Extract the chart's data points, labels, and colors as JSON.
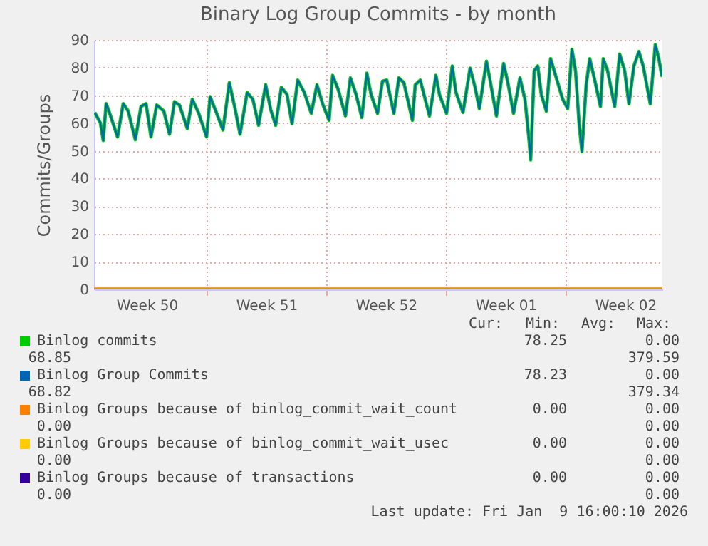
{
  "chart_data": {
    "type": "line",
    "title": "Binary Log Group Commits - by month",
    "ylabel": "Commits/Groups",
    "x": [
      "2025-12-08T11:00",
      "2025-12-08T19:00",
      "2025-12-08T23:00",
      "2025-12-09T03:00",
      "2025-12-09T07:00",
      "2025-12-09T19:00",
      "2025-12-10T03:00",
      "2025-12-10T10:00",
      "2025-12-10T20:00",
      "2025-12-11T04:00",
      "2025-12-11T11:00",
      "2025-12-11T18:00",
      "2025-12-12T02:00",
      "2025-12-12T12:00",
      "2025-12-12T20:00",
      "2025-12-13T03:00",
      "2025-12-13T10:00",
      "2025-12-13T21:00",
      "2025-12-14T04:00",
      "2025-12-14T13:00",
      "2025-12-15T00:00",
      "2025-12-15T05:00",
      "2025-12-15T13:00",
      "2025-12-15T23:00",
      "2025-12-16T08:00",
      "2025-12-16T16:00",
      "2025-12-16T23:00",
      "2025-12-17T09:00",
      "2025-12-17T17:00",
      "2025-12-18T01:00",
      "2025-12-18T11:00",
      "2025-12-18T18:00",
      "2025-12-19T01:00",
      "2025-12-19T09:00",
      "2025-12-19T17:00",
      "2025-12-20T00:00",
      "2025-12-20T08:00",
      "2025-12-20T17:00",
      "2025-12-21T03:00",
      "2025-12-21T11:00",
      "2025-12-21T19:00",
      "2025-12-22T04:00",
      "2025-12-22T09:00",
      "2025-12-22T17:00",
      "2025-12-23T03:00",
      "2025-12-23T10:00",
      "2025-12-23T18:00",
      "2025-12-24T02:00",
      "2025-12-24T09:00",
      "2025-12-24T15:00",
      "2025-12-25T00:00",
      "2025-12-25T07:00",
      "2025-12-25T13:00",
      "2025-12-25T23:00",
      "2025-12-26T06:00",
      "2025-12-26T13:00",
      "2025-12-27T01:00",
      "2025-12-27T05:00",
      "2025-12-27T12:00",
      "2025-12-28T01:00",
      "2025-12-28T10:00",
      "2025-12-28T15:00",
      "2025-12-29T01:00",
      "2025-12-29T09:00",
      "2025-12-29T14:00",
      "2025-12-30T00:00",
      "2025-12-30T10:00",
      "2025-12-30T17:00",
      "2025-12-30T23:00",
      "2025-12-31T09:00",
      "2025-12-31T14:00",
      "2025-12-31T23:00",
      "2026-01-01T09:00",
      "2026-01-01T15:00",
      "2026-01-01T23:00",
      "2026-01-02T08:00",
      "2026-01-02T15:00",
      "2026-01-02T21:00",
      "2026-01-02T23:00",
      "2026-01-03T04:00",
      "2026-01-03T09:00",
      "2026-01-03T14:00",
      "2026-01-03T21:00",
      "2026-01-04T03:00",
      "2026-01-04T10:00",
      "2026-01-04T20:00",
      "2026-01-05T03:00",
      "2026-01-05T09:00",
      "2026-01-05T14:00",
      "2026-01-05T19:00",
      "2026-01-05T23:00",
      "2026-01-06T05:00",
      "2026-01-06T10:00",
      "2026-01-06T17:00",
      "2026-01-07T01:00",
      "2026-01-07T05:00",
      "2026-01-07T11:00",
      "2026-01-07T21:00",
      "2026-01-08T04:00",
      "2026-01-08T11:00",
      "2026-01-08T17:00",
      "2026-01-09T00:00",
      "2026-01-09T07:00",
      "2026-01-09T13:00",
      "2026-01-09T23:00",
      "2026-01-10T06:00",
      "2026-01-10T11:00",
      "2026-01-10T15:00",
      "2026-01-10T16:00"
    ],
    "series": [
      {
        "name": "Binlog commits",
        "color": "#00cc00",
        "values": [
          63.8,
          60,
          53.7,
          67,
          64.3,
          55,
          67,
          64.3,
          54,
          66,
          67,
          55,
          66.5,
          64.3,
          56,
          67.7,
          66.5,
          58,
          68.6,
          63.5,
          55,
          69.5,
          64.3,
          57.5,
          74.6,
          65.2,
          56,
          71,
          68.6,
          59.2,
          73.8,
          64.9,
          59.2,
          72.9,
          70.3,
          59.7,
          75.5,
          71.2,
          63.5,
          73.8,
          66.9,
          61,
          77.2,
          72,
          62.6,
          76.3,
          70.3,
          62,
          78,
          70.3,
          63.5,
          75.1,
          75.5,
          63.5,
          76.3,
          74.6,
          61,
          73.8,
          75.5,
          62.6,
          77.2,
          70.3,
          63.5,
          80.6,
          71.2,
          63.8,
          79.8,
          72.9,
          65.2,
          82.3,
          75.5,
          62.6,
          81.5,
          74.6,
          63.5,
          76.3,
          68.6,
          53.2,
          46.7,
          78.9,
          80.6,
          70.3,
          64.3,
          83.2,
          77.2,
          68.6,
          65.2,
          86.6,
          78.9,
          60,
          49.7,
          73.8,
          83.2,
          75.5,
          66,
          83.2,
          78.9,
          66,
          84.9,
          78.9,
          66.9,
          80.6,
          85.8,
          80.6,
          66.9,
          88.3,
          83.2,
          77.2,
          78.2
        ]
      },
      {
        "name": "Binlog Group Commits",
        "color": "#0066b3",
        "values": [
          63.8,
          60,
          53.7,
          67,
          64.3,
          55,
          67,
          64.3,
          54,
          66,
          67,
          55,
          66.5,
          64.3,
          56,
          67.7,
          66.5,
          58,
          68.6,
          63.5,
          55,
          69.5,
          64.3,
          57.5,
          74.6,
          65.2,
          56,
          71,
          68.6,
          59.2,
          73.8,
          64.9,
          59.2,
          72.9,
          70.3,
          59.7,
          75.5,
          71.2,
          63.5,
          73.8,
          66.9,
          61,
          77.2,
          72,
          62.6,
          76.3,
          70.3,
          62,
          78,
          70.3,
          63.5,
          75.1,
          75.5,
          63.5,
          76.3,
          74.6,
          61,
          73.8,
          75.5,
          62.6,
          77.2,
          70.3,
          63.5,
          80.6,
          71.2,
          63.8,
          79.8,
          72.9,
          65.2,
          82.3,
          75.5,
          62.6,
          81.5,
          74.6,
          63.5,
          76.3,
          68.6,
          53.2,
          46.7,
          78.9,
          80.6,
          70.3,
          64.3,
          83.2,
          77.2,
          68.6,
          65.2,
          86.6,
          78.9,
          60,
          49.7,
          73.8,
          83.2,
          75.5,
          66,
          83.2,
          78.9,
          66,
          84.9,
          78.9,
          66.9,
          80.6,
          85.8,
          80.6,
          66.9,
          88.3,
          83.2,
          77.2,
          78.2
        ]
      },
      {
        "name": "Binlog Groups because of binlog_commit_wait_count",
        "color": "#ff8000",
        "x": [
          "2025-12-08T10:00",
          "2026-01-10T16:00"
        ],
        "values": [
          0,
          0
        ]
      },
      {
        "name": "Binlog Groups because of binlog_commit_wait_usec",
        "color": "#ffcc00",
        "x": [
          "2025-12-08T10:00",
          "2026-01-10T16:00"
        ],
        "values": [
          0,
          0
        ]
      },
      {
        "name": "Binlog Groups because of transactions",
        "color": "#330099",
        "x": [
          "2025-12-08T10:00",
          "2026-01-10T16:00"
        ],
        "values": [
          0,
          0
        ]
      }
    ],
    "xlim": [
      "2025-12-08T10:00",
      "2026-01-10T16:00"
    ],
    "xticks": [
      {
        "value": "2025-12-11T12:00",
        "label": "Week 50"
      },
      {
        "value": "2025-12-15T00:00",
        "label": null
      },
      {
        "value": "2025-12-18T12:00",
        "label": "Week 51"
      },
      {
        "value": "2025-12-22T00:00",
        "label": null
      },
      {
        "value": "2025-12-25T12:00",
        "label": "Week 52"
      },
      {
        "value": "2025-12-29T00:00",
        "label": null
      },
      {
        "value": "2026-01-01T12:00",
        "label": "Week 01"
      },
      {
        "value": "2026-01-05T00:00",
        "label": null
      },
      {
        "value": "2026-01-08T12:00",
        "label": "Week 02"
      }
    ],
    "ylim": [
      0,
      90
    ],
    "yticks": [
      0,
      10,
      20,
      30,
      40,
      50,
      60,
      70,
      80,
      90
    ],
    "grid": true,
    "legend": "bottom",
    "annotations": [
      "Cur:",
      "Min:",
      "Avg:",
      "Max:",
      "78.25",
      "0.00",
      "68.85",
      "379.59",
      "78.23",
      "0.00",
      "68.82",
      "379.34",
      "0.00",
      "0.00",
      "0.00",
      "0.00",
      "0.00",
      "0.00",
      "0.00",
      "0.00",
      "0.00",
      "0.00",
      "0.00",
      "0.00",
      "Last update: Fri Jan  9 16:00:10 2026"
    ]
  }
}
